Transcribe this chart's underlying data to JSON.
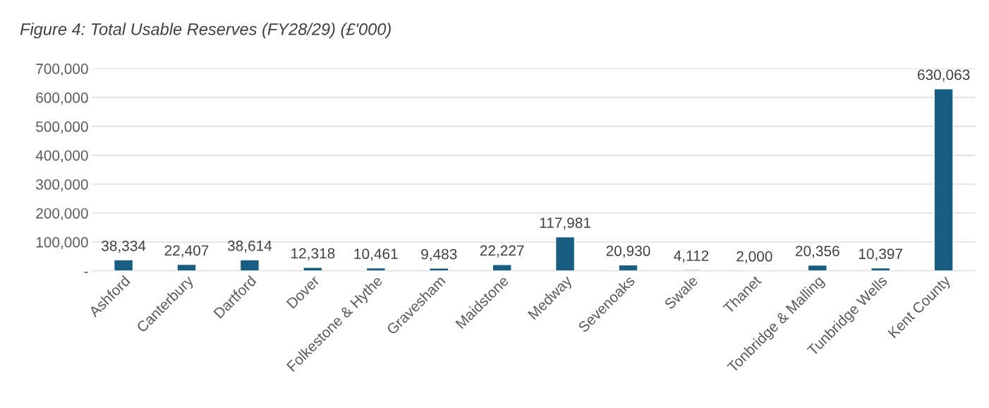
{
  "chart_data": {
    "type": "bar",
    "title": "Figure 4: Total Usable Reserves (FY28/29) (£'000)",
    "categories": [
      "Ashford",
      "Canterbury",
      "Dartford",
      "Dover",
      "Folkestone & Hythe",
      "Gravesham",
      "Maidstone",
      "Medway",
      "Sevenoaks",
      "Swale",
      "Thanet",
      "Tonbridge & Malling",
      "Tunbridge Wells",
      "Kent County"
    ],
    "values": [
      38334,
      22407,
      38614,
      12318,
      10461,
      9483,
      22227,
      117981,
      20930,
      4112,
      2000,
      20356,
      10397,
      630063
    ],
    "value_labels": [
      "38,334",
      "22,407",
      "38,614",
      "12,318",
      "10,461",
      "9,483",
      "22,227",
      "117,981",
      "20,930",
      "4,112",
      "2,000",
      "20,356",
      "10,397",
      "630,063"
    ],
    "color": "#175e82",
    "ylim": [
      0,
      700000
    ],
    "yticks": [
      {
        "value": 0,
        "label": "-"
      },
      {
        "value": 100000,
        "label": "100,000"
      },
      {
        "value": 200000,
        "label": "200,000"
      },
      {
        "value": 300000,
        "label": "300,000"
      },
      {
        "value": 400000,
        "label": "400,000"
      },
      {
        "value": 500000,
        "label": "500,000"
      },
      {
        "value": 600000,
        "label": "600,000"
      },
      {
        "value": 700000,
        "label": "700,000"
      }
    ],
    "grid": "y"
  }
}
